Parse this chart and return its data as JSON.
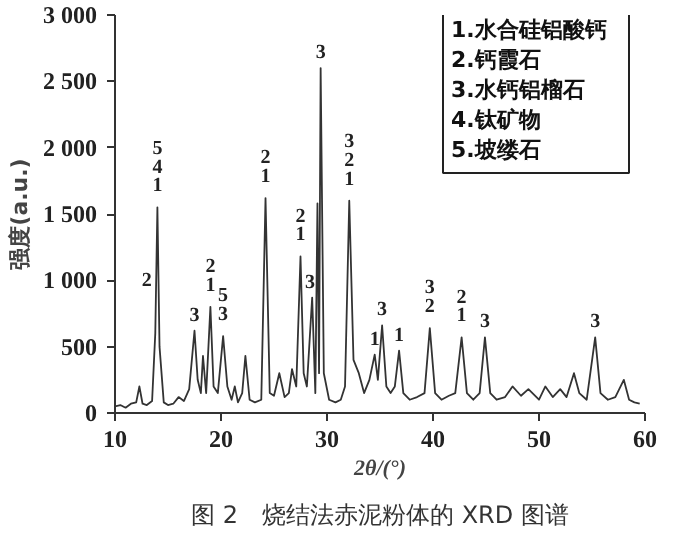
{
  "chart_data": {
    "type": "line",
    "title": "图 2　烧结法赤泥粉体的 XRD 图谱",
    "xlabel": "2θ/(°)",
    "ylabel": "强度(a.u.)",
    "xlim": [
      10,
      60
    ],
    "xticks": [
      10,
      20,
      30,
      40,
      50,
      60
    ],
    "ylim": [
      0,
      3000
    ],
    "yticks": [
      0,
      500,
      {
        "value": 1000,
        "label": "1 000"
      },
      {
        "value": 1500,
        "label": "1 500"
      },
      {
        "value": 2000,
        "label": "2 000"
      },
      {
        "value": 2500,
        "label": "2 500"
      },
      {
        "value": 3000,
        "label": "3 000"
      }
    ],
    "grid": false,
    "marker": "none",
    "line_style": "solid",
    "series": [
      {
        "color": "#333333",
        "x": [
          10,
          10.5,
          11,
          11.5,
          12,
          12.3,
          12.6,
          13,
          13.5,
          13.8,
          14.0,
          14.2,
          14.6,
          15,
          15.5,
          16,
          16.5,
          17,
          17.5,
          17.8,
          18.1,
          18.3,
          18.6,
          19.0,
          19.3,
          19.7,
          20.2,
          20.6,
          21,
          21.3,
          21.6,
          22,
          22.3,
          22.7,
          23.2,
          23.8,
          24.2,
          24.6,
          25,
          25.5,
          26,
          26.4,
          26.7,
          27.1,
          27.5,
          27.8,
          28.1,
          28.6,
          28.9,
          29.1,
          29.25,
          29.4,
          29.7,
          30.2,
          30.8,
          31.3,
          31.7,
          32.1,
          32.5,
          33,
          33.5,
          34,
          34.5,
          34.8,
          35.2,
          35.6,
          36,
          36.4,
          36.8,
          37.2,
          37.8,
          38.5,
          39.2,
          39.7,
          40.2,
          40.8,
          41.5,
          42.1,
          42.7,
          43.2,
          43.8,
          44.4,
          44.9,
          45.4,
          46,
          46.8,
          47.5,
          48.3,
          49,
          50,
          50.6,
          51.3,
          52,
          52.6,
          53.3,
          53.8,
          54.5,
          55.3,
          55.8,
          56.5,
          57.2,
          58,
          58.5,
          59,
          59.5
        ],
        "values": [
          50,
          60,
          40,
          70,
          80,
          200,
          70,
          60,
          90,
          600,
          1550,
          500,
          80,
          60,
          70,
          120,
          90,
          180,
          620,
          250,
          150,
          430,
          150,
          800,
          200,
          150,
          580,
          200,
          100,
          200,
          80,
          150,
          430,
          100,
          80,
          100,
          1620,
          150,
          130,
          300,
          120,
          150,
          330,
          200,
          1180,
          300,
          200,
          870,
          150,
          1580,
          300,
          2600,
          300,
          100,
          80,
          100,
          200,
          1600,
          400,
          300,
          150,
          250,
          440,
          250,
          660,
          200,
          150,
          200,
          470,
          150,
          100,
          120,
          150,
          640,
          150,
          100,
          130,
          150,
          570,
          150,
          100,
          150,
          570,
          150,
          100,
          120,
          200,
          130,
          180,
          100,
          200,
          120,
          180,
          120,
          300,
          150,
          100,
          570,
          150,
          100,
          120,
          250,
          100,
          80,
          70
        ]
      }
    ],
    "annotations": [
      "1.水合硅铝酸钙",
      "2.钙霞石",
      "3.水钙铝榴石",
      "4.钛矿物",
      "5.坡缕石",
      {
        "text": "5\n4\n1",
        "x": 14.0,
        "y": 1550
      },
      {
        "text": "2",
        "x": 13.0,
        "y": 880
      },
      {
        "text": "3",
        "x": 17.5,
        "y": 620
      },
      {
        "text": "2\n1",
        "x": 19.0,
        "y": 800
      },
      {
        "text": "5\n3",
        "x": 20.2,
        "y": 580
      },
      {
        "text": "2\n1",
        "x": 24.2,
        "y": 1620
      },
      {
        "text": "2\n1",
        "x": 27.5,
        "y": 1180
      },
      {
        "text": "3",
        "x": 28.4,
        "y": 870
      },
      {
        "text": "3",
        "x": 29.4,
        "y": 2600
      },
      {
        "text": "3\n2\n1",
        "x": 32.1,
        "y": 1600
      },
      {
        "text": "1",
        "x": 34.5,
        "y": 440
      },
      {
        "text": "3",
        "x": 35.2,
        "y": 660
      },
      {
        "text": "1",
        "x": 36.8,
        "y": 470
      },
      {
        "text": "3\n2",
        "x": 39.7,
        "y": 640
      },
      {
        "text": "2\n1",
        "x": 42.7,
        "y": 570
      },
      {
        "text": "3",
        "x": 44.9,
        "y": 570
      },
      {
        "text": "3",
        "x": 55.3,
        "y": 570
      }
    ]
  }
}
